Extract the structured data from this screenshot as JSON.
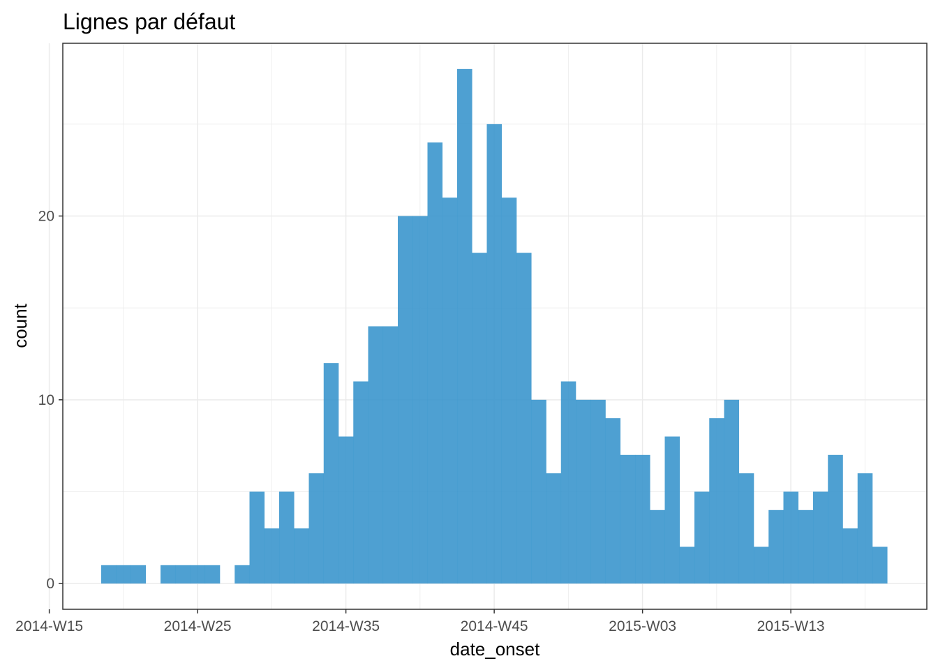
{
  "chart_data": {
    "type": "bar",
    "title": "Lignes par défaut",
    "xlabel": "date_onset",
    "ylabel": "count",
    "x_tick_labels": [
      "2014-W15",
      "2014-W25",
      "2014-W35",
      "2014-W45",
      "2015-W03",
      "2015-W13"
    ],
    "y_ticks": [
      0,
      10,
      20
    ],
    "ylim": [
      -1.4,
      29.4
    ],
    "grid": true,
    "bar_color": "#3b96cd",
    "categories": [
      "2014-W16",
      "2014-W17",
      "2014-W18",
      "2014-W19",
      "2014-W20",
      "2014-W21",
      "2014-W22",
      "2014-W23",
      "2014-W24",
      "2014-W25",
      "2014-W26",
      "2014-W27",
      "2014-W28",
      "2014-W29",
      "2014-W30",
      "2014-W31",
      "2014-W32",
      "2014-W33",
      "2014-W34",
      "2014-W35",
      "2014-W36",
      "2014-W37",
      "2014-W38",
      "2014-W39",
      "2014-W40",
      "2014-W41",
      "2014-W42",
      "2014-W43",
      "2014-W44",
      "2014-W45",
      "2014-W46",
      "2014-W47",
      "2014-W48",
      "2014-W49",
      "2014-W50",
      "2014-W51",
      "2014-W52",
      "2015-W01",
      "2015-W02",
      "2015-W03",
      "2015-W04",
      "2015-W05",
      "2015-W06",
      "2015-W07",
      "2015-W08",
      "2015-W09",
      "2015-W10",
      "2015-W11",
      "2015-W12",
      "2015-W13",
      "2015-W14",
      "2015-W15",
      "2015-W16",
      "2015-W17",
      "2015-W18",
      "2015-W19",
      "2015-W20",
      "2015-W21",
      "2015-W22",
      "2015-W23"
    ],
    "values": [
      0,
      0,
      1,
      1,
      1,
      0,
      1,
      1,
      1,
      1,
      0,
      1,
      5,
      3,
      5,
      3,
      6,
      12,
      8,
      11,
      14,
      14,
      20,
      20,
      24,
      21,
      28,
      18,
      25,
      21,
      18,
      10,
      6,
      11,
      10,
      10,
      9,
      7,
      7,
      4,
      8,
      2,
      5,
      9,
      10,
      6,
      2,
      4,
      5,
      4,
      5,
      7,
      3,
      6,
      2,
      0,
      0,
      0,
      0,
      0
    ]
  }
}
